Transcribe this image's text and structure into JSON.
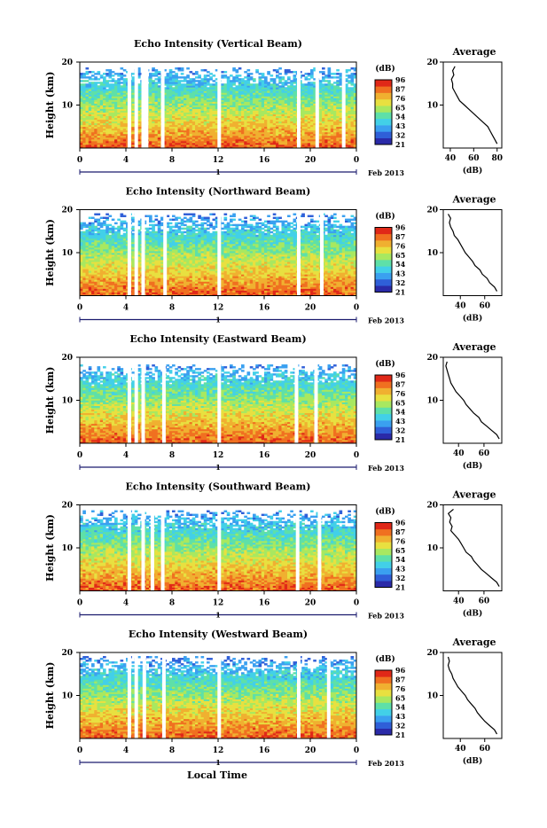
{
  "x_axis_label": "Local Time",
  "x_ticks": [
    "0",
    "4",
    "8",
    "12",
    "16",
    "20",
    "0"
  ],
  "date_label": "Feb 2013",
  "date_tick": "1",
  "colorbar": {
    "unit": "(dB)",
    "ticks": [
      "96",
      "87",
      "76",
      "65",
      "54",
      "43",
      "32",
      "21"
    ],
    "colors": [
      "#2a2aa8",
      "#2f5fd8",
      "#3aa0f0",
      "#42d0e8",
      "#5ee0a8",
      "#a8e860",
      "#e8e040",
      "#f0b030",
      "#f07020",
      "#e02818"
    ]
  },
  "chart_data": [
    {
      "type": "heatmap",
      "title": "Echo Intensity (Vertical Beam)",
      "ylabel": "Height (km)",
      "yticks": [
        "20",
        "10"
      ],
      "xlim": [
        0,
        24
      ],
      "ylim": [
        0,
        20
      ],
      "gaps_hours": [
        4.3,
        4.9,
        5.5,
        5.8,
        7.2,
        12.1,
        19.0,
        20.6,
        22.9
      ],
      "top_km": 18.8,
      "profile": {
        "title": "Average",
        "xlabel": "(dB)",
        "xticks": [
          "40",
          "60",
          "80"
        ],
        "xlim": [
          34,
          84
        ],
        "height_km": [
          1,
          2,
          3,
          4,
          5,
          6,
          7,
          8,
          9,
          10,
          11,
          12,
          13,
          14,
          15,
          16,
          17,
          18,
          19
        ],
        "db": [
          80,
          78,
          76,
          74,
          72,
          68,
          64,
          60,
          56,
          52,
          48,
          46,
          44,
          42,
          42,
          41,
          43,
          42,
          44
        ]
      }
    },
    {
      "type": "heatmap",
      "title": "Echo Intensity (Northward Beam)",
      "ylabel": "Height (km)",
      "yticks": [
        "20",
        "10"
      ],
      "xlim": [
        0,
        24
      ],
      "ylim": [
        0,
        20
      ],
      "gaps_hours": [
        4.3,
        4.9,
        5.5,
        7.4,
        12.1,
        19.0,
        21.0
      ],
      "top_km": 19.0,
      "profile": {
        "title": "Average",
        "xlabel": "(dB)",
        "xticks": [
          "40",
          "60"
        ],
        "xlim": [
          26,
          74
        ],
        "height_km": [
          1,
          2,
          3,
          4,
          5,
          6,
          7,
          8,
          9,
          10,
          11,
          12,
          13,
          14,
          15,
          16,
          17,
          18,
          19
        ],
        "db": [
          70,
          68,
          64,
          62,
          58,
          56,
          52,
          50,
          47,
          44,
          42,
          40,
          38,
          35,
          34,
          32,
          31,
          32,
          30
        ]
      }
    },
    {
      "type": "heatmap",
      "title": "Echo Intensity (Eastward Beam)",
      "ylabel": "Height (km)",
      "yticks": [
        "20",
        "10"
      ],
      "xlim": [
        0,
        24
      ],
      "ylim": [
        0,
        20
      ],
      "gaps_hours": [
        4.3,
        4.9,
        5.5,
        7.3,
        12.1,
        18.8,
        20.5
      ],
      "top_km": 18.5,
      "profile": {
        "title": "Average",
        "xlabel": "(dB)",
        "xticks": [
          "40",
          "60"
        ],
        "xlim": [
          28,
          74
        ],
        "height_km": [
          1,
          2,
          3,
          4,
          5,
          6,
          7,
          8,
          9,
          10,
          11,
          12,
          13,
          14,
          15,
          16,
          17,
          18,
          19
        ],
        "db": [
          72,
          70,
          66,
          62,
          58,
          56,
          52,
          49,
          46,
          44,
          41,
          38,
          36,
          34,
          33,
          32,
          31,
          30,
          31
        ]
      }
    },
    {
      "type": "heatmap",
      "title": "Echo Intensity (Southward Beam)",
      "ylabel": "Height (km)",
      "yticks": [
        "20",
        "10"
      ],
      "xlim": [
        0,
        24
      ],
      "ylim": [
        0,
        20
      ],
      "gaps_hours": [
        4.3,
        5.5,
        6.3,
        7.2,
        12.1,
        18.9,
        20.8
      ],
      "top_km": 18.8,
      "profile": {
        "title": "Average",
        "xlabel": "(dB)",
        "xticks": [
          "40",
          "60"
        ],
        "xlim": [
          28,
          74
        ],
        "height_km": [
          1,
          2,
          3,
          4,
          5,
          6,
          7,
          8,
          9,
          10,
          11,
          12,
          13,
          14,
          15,
          16,
          17,
          18,
          19
        ],
        "db": [
          72,
          70,
          66,
          62,
          58,
          55,
          52,
          50,
          46,
          44,
          42,
          40,
          37,
          34,
          35,
          33,
          34,
          32,
          36
        ]
      }
    },
    {
      "type": "heatmap",
      "title": "Echo Intensity (Westward Beam)",
      "ylabel": "Height (km)",
      "yticks": [
        "20",
        "10"
      ],
      "xlim": [
        0,
        24
      ],
      "ylim": [
        0,
        20
      ],
      "gaps_hours": [
        4.3,
        4.9,
        5.6,
        7.3,
        12.1,
        19.0,
        21.6
      ],
      "top_km": 19.0,
      "profile": {
        "title": "Average",
        "xlabel": "(dB)",
        "xticks": [
          "40",
          "60"
        ],
        "xlim": [
          26,
          74
        ],
        "height_km": [
          1,
          2,
          3,
          4,
          5,
          6,
          7,
          8,
          9,
          10,
          11,
          12,
          13,
          14,
          15,
          16,
          17,
          18,
          19
        ],
        "db": [
          70,
          68,
          64,
          60,
          57,
          54,
          52,
          49,
          46,
          44,
          41,
          38,
          36,
          34,
          33,
          31,
          30,
          31,
          30
        ]
      }
    }
  ]
}
